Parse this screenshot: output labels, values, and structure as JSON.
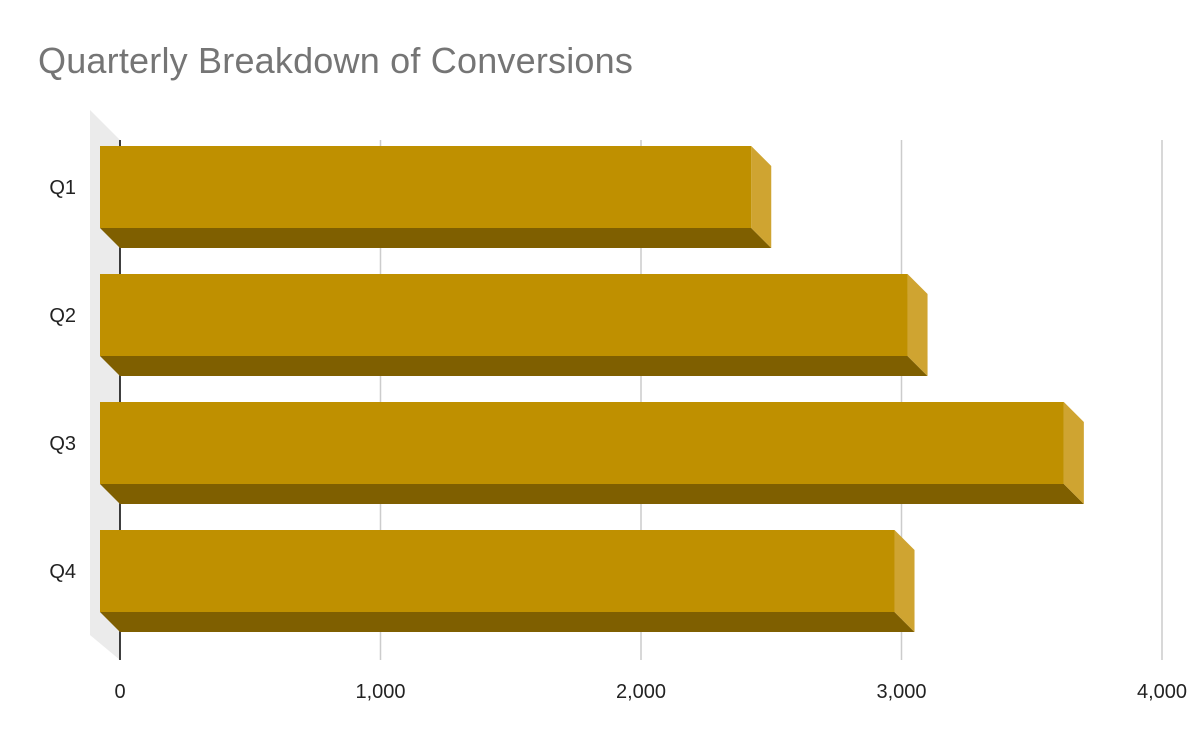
{
  "chart_data": {
    "type": "bar",
    "orientation": "horizontal",
    "three_d": true,
    "title": "Quarterly Breakdown of Conversions",
    "xlabel": "",
    "ylabel": "",
    "categories": [
      "Q1",
      "Q2",
      "Q3",
      "Q4"
    ],
    "series": [
      {
        "values": [
          2500,
          3100,
          3700,
          3050
        ]
      }
    ],
    "xlim": [
      0,
      4000
    ],
    "xticks": [
      0,
      1000,
      2000,
      3000,
      4000
    ],
    "xtick_labels": [
      "0",
      "1,000",
      "2,000",
      "3,000",
      "4,000"
    ],
    "grid": true,
    "legend": "none",
    "colors": {
      "bar_front": "#bf9000",
      "bar_side": "#cfa431",
      "bar_bottom": "#7f5f00",
      "gridline": "#cccccc",
      "axis": "#000000",
      "wall": "#ebebeb",
      "title": "#757575"
    }
  }
}
